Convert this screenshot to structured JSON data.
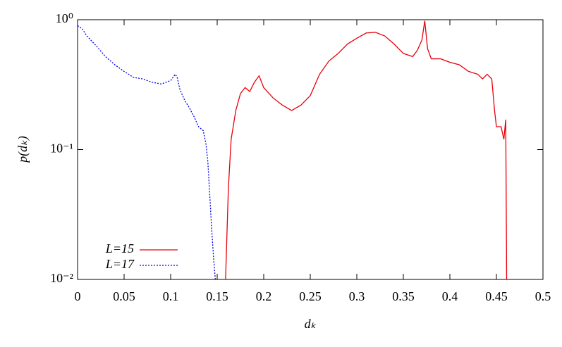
{
  "chart_data": {
    "type": "line",
    "xlabel": "dₖ",
    "ylabel": "p(dₖ)",
    "xlim": [
      0,
      0.5
    ],
    "ylim": [
      0.01,
      1
    ],
    "ylog": true,
    "xticks": [
      0,
      0.05,
      0.1,
      0.15,
      0.2,
      0.25,
      0.3,
      0.35,
      0.4,
      0.45,
      0.5
    ],
    "yticks": [
      {
        "value": 0.01,
        "label": "10⁻²"
      },
      {
        "value": 0.1,
        "label": "10⁻¹"
      },
      {
        "value": 1,
        "label": "10⁰"
      }
    ],
    "legend": "lower left",
    "series": [
      {
        "name": "L=15",
        "color": "#e8000b",
        "dash": "solid",
        "x": [
          0.159,
          0.162,
          0.165,
          0.17,
          0.175,
          0.18,
          0.185,
          0.19,
          0.195,
          0.2,
          0.21,
          0.22,
          0.23,
          0.24,
          0.25,
          0.26,
          0.27,
          0.28,
          0.29,
          0.3,
          0.31,
          0.32,
          0.33,
          0.34,
          0.35,
          0.36,
          0.365,
          0.37,
          0.373,
          0.376,
          0.38,
          0.39,
          0.4,
          0.41,
          0.42,
          0.43,
          0.435,
          0.44,
          0.445,
          0.448,
          0.45,
          0.455,
          0.458,
          0.46,
          0.461
        ],
        "values": [
          0.01,
          0.05,
          0.12,
          0.2,
          0.27,
          0.3,
          0.28,
          0.33,
          0.37,
          0.3,
          0.25,
          0.22,
          0.2,
          0.22,
          0.26,
          0.38,
          0.48,
          0.55,
          0.65,
          0.72,
          0.79,
          0.8,
          0.75,
          0.65,
          0.55,
          0.52,
          0.58,
          0.7,
          0.98,
          0.6,
          0.5,
          0.5,
          0.47,
          0.45,
          0.4,
          0.38,
          0.35,
          0.38,
          0.35,
          0.2,
          0.15,
          0.15,
          0.12,
          0.17,
          0.01
        ]
      },
      {
        "name": "L=17",
        "color": "#0000ee",
        "dash": "dotted",
        "x": [
          0,
          0.005,
          0.01,
          0.02,
          0.03,
          0.04,
          0.05,
          0.06,
          0.07,
          0.08,
          0.09,
          0.1,
          0.105,
          0.107,
          0.11,
          0.115,
          0.12,
          0.125,
          0.13,
          0.135,
          0.138,
          0.14,
          0.142,
          0.144,
          0.146,
          0.148
        ],
        "values": [
          0.9,
          0.85,
          0.75,
          0.63,
          0.52,
          0.45,
          0.4,
          0.36,
          0.35,
          0.33,
          0.32,
          0.34,
          0.38,
          0.36,
          0.29,
          0.24,
          0.21,
          0.18,
          0.15,
          0.14,
          0.11,
          0.08,
          0.045,
          0.025,
          0.015,
          0.01
        ]
      }
    ]
  }
}
